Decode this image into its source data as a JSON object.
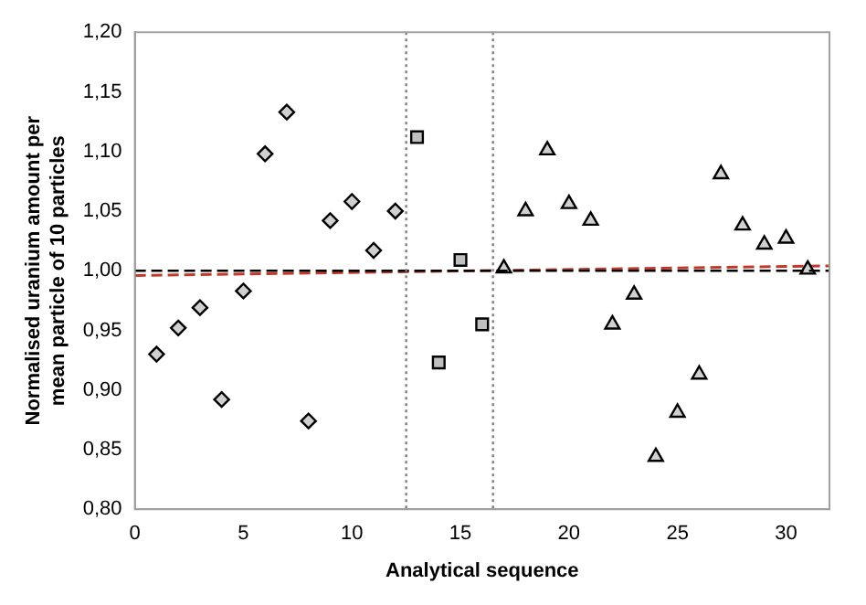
{
  "chart_data": {
    "type": "scatter",
    "xlabel": "Analytical sequence",
    "ylabel": "Normalised uranium amount per mean particle of 10 particles",
    "xlim": [
      0,
      32
    ],
    "xticks": [
      0,
      5,
      10,
      15,
      20,
      25,
      30
    ],
    "ylim": [
      0.8,
      1.2
    ],
    "yticks": [
      {
        "value": 0.8,
        "label": "0,80"
      },
      {
        "value": 0.85,
        "label": "0,85"
      },
      {
        "value": 0.9,
        "label": "0,90"
      },
      {
        "value": 0.95,
        "label": "0,95"
      },
      {
        "value": 1.0,
        "label": "1,00"
      },
      {
        "value": 1.05,
        "label": "1,05"
      },
      {
        "value": 1.1,
        "label": "1,10"
      },
      {
        "value": 1.15,
        "label": "1,15"
      },
      {
        "value": 1.2,
        "label": "1,20"
      }
    ],
    "grid": false,
    "legend": false,
    "series": [
      {
        "marker": "diamond",
        "color": "#d0d0d0",
        "x": [
          1,
          2,
          3,
          4,
          5,
          6,
          7,
          8,
          9,
          10,
          11,
          12
        ],
        "values": [
          0.93,
          0.952,
          0.969,
          0.892,
          0.983,
          1.098,
          1.133,
          0.874,
          1.042,
          1.058,
          1.017,
          1.05
        ]
      },
      {
        "marker": "square",
        "color": "#c0c0c0",
        "x": [
          13,
          14,
          15,
          16
        ],
        "values": [
          1.112,
          0.923,
          1.009,
          0.955
        ]
      },
      {
        "marker": "triangle",
        "color": "#d0d0d0",
        "x": [
          17,
          18,
          19,
          20,
          21,
          22,
          23,
          24,
          25,
          26,
          27,
          28,
          29,
          30,
          31
        ],
        "values": [
          1.002,
          1.05,
          1.101,
          1.056,
          1.042,
          0.955,
          0.98,
          0.844,
          0.881,
          0.913,
          1.081,
          1.038,
          1.022,
          1.027,
          1.001
        ]
      },
      {
        "type": "line",
        "marker": "none",
        "line_style": "dashed",
        "color": "#c0392b",
        "x": [
          0,
          32
        ],
        "values": [
          0.996,
          1.004
        ]
      }
    ],
    "ref_lines": [
      {
        "axis": "y",
        "value": 1.0,
        "color": "#000000",
        "line_style": "dashed"
      },
      {
        "axis": "x",
        "value": 12.5,
        "color": "#808080",
        "line_style": "dotted"
      },
      {
        "axis": "x",
        "value": 16.5,
        "color": "#808080",
        "line_style": "dotted"
      }
    ]
  }
}
